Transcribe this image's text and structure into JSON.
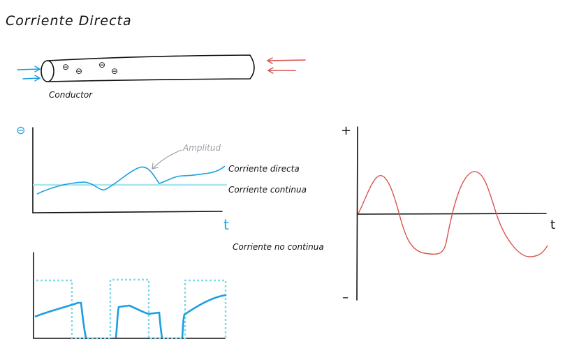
{
  "title": "Corriente Directa",
  "conductor": {
    "label": "Conductor",
    "electron_symbol": "⊖",
    "electron_count": 4
  },
  "colors": {
    "ink": "#111111",
    "blue": "#1a9fe0",
    "light_cyan": "#a8e6ee",
    "red": "#d9534f",
    "gray": "#9aa0a6"
  },
  "graph1": {
    "y_axis_symbol": "⊖",
    "x_axis_label": "t",
    "annotation": "Amplitud",
    "label_direct": "Corriente directa",
    "label_continuous": "Corriente continua"
  },
  "graph2": {
    "title": "Corriente no continua"
  },
  "graph3": {
    "plus_label": "+",
    "minus_label": "–",
    "x_axis_label": "t"
  }
}
